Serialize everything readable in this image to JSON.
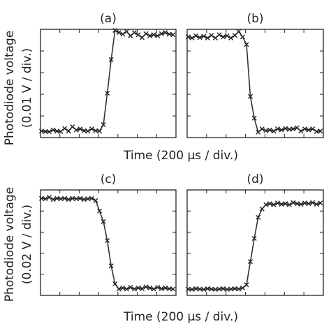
{
  "figure": {
    "top_ylabel_line1": "Photodiode voltage",
    "top_ylabel_line2": "(0.01 V / div.)",
    "bottom_ylabel_line1": "Photodiode voltage",
    "bottom_ylabel_line2": "(0.02 V / div.)",
    "top_xlabel": "Time (200 μs / div.)",
    "bottom_xlabel": "Time (200 μs / div.)"
  },
  "chart_data": [
    {
      "type": "scatter",
      "title": "(a)",
      "xlabel": "Time (200 μs / div.)",
      "ylabel": "Photodiode voltage (0.01 V / div.)",
      "xlim": [
        0,
        7
      ],
      "ylim": [
        0,
        5
      ],
      "series": [
        {
          "x": [
            0.05,
            0.25,
            0.45,
            0.65,
            0.85,
            1.05,
            1.25,
            1.45,
            1.65,
            1.85,
            2.05,
            2.25,
            2.45,
            2.65,
            2.85,
            3.05,
            3.25,
            3.45,
            3.65,
            3.85,
            4.05,
            4.25,
            4.45,
            4.65,
            4.85,
            5.05,
            5.25,
            5.45,
            5.65,
            5.85,
            6.05,
            6.25,
            6.45,
            6.65,
            6.85
          ],
          "y": [
            0.3,
            0.28,
            0.27,
            0.35,
            0.3,
            0.28,
            0.42,
            0.3,
            0.5,
            0.35,
            0.4,
            0.32,
            0.3,
            0.4,
            0.32,
            0.3,
            0.6,
            2.05,
            3.6,
            4.95,
            4.85,
            4.78,
            4.9,
            4.7,
            4.85,
            4.75,
            4.62,
            4.8,
            4.7,
            4.75,
            4.7,
            4.8,
            4.85,
            4.78,
            4.75
          ]
        }
      ]
    },
    {
      "type": "scatter",
      "title": "(b)",
      "xlabel": "Time (200 μs / div.)",
      "ylabel": "Photodiode voltage (0.01 V / div.)",
      "xlim": [
        0,
        7
      ],
      "ylim": [
        0,
        5
      ],
      "series": [
        {
          "x": [
            0.05,
            0.25,
            0.45,
            0.65,
            0.85,
            1.05,
            1.25,
            1.45,
            1.65,
            1.85,
            2.05,
            2.25,
            2.45,
            2.65,
            2.85,
            3.05,
            3.25,
            3.45,
            3.65,
            3.85,
            4.05,
            4.25,
            4.45,
            4.65,
            4.85,
            5.05,
            5.25,
            5.45,
            5.65,
            5.85,
            6.05,
            6.25,
            6.45,
            6.65,
            6.85
          ],
          "y": [
            4.65,
            4.6,
            4.7,
            4.62,
            4.68,
            4.6,
            4.72,
            4.6,
            4.75,
            4.65,
            4.7,
            4.6,
            4.72,
            4.9,
            4.65,
            4.3,
            1.9,
            0.9,
            0.25,
            0.4,
            0.32,
            0.35,
            0.3,
            0.4,
            0.35,
            0.42,
            0.38,
            0.4,
            0.45,
            0.3,
            0.4,
            0.35,
            0.4,
            0.28,
            0.3
          ]
        }
      ]
    },
    {
      "type": "scatter",
      "title": "(c)",
      "xlabel": "Time (200 μs / div.)",
      "ylabel": "Photodiode voltage (0.02 V / div.)",
      "xlim": [
        0,
        7
      ],
      "ylim": [
        0,
        5
      ],
      "series": [
        {
          "x": [
            0.05,
            0.25,
            0.45,
            0.65,
            0.85,
            1.05,
            1.25,
            1.45,
            1.65,
            1.85,
            2.05,
            2.25,
            2.45,
            2.65,
            2.85,
            3.05,
            3.25,
            3.45,
            3.65,
            3.85,
            4.05,
            4.25,
            4.45,
            4.65,
            4.85,
            5.05,
            5.25,
            5.45,
            5.65,
            5.85,
            6.05,
            6.25,
            6.45,
            6.65,
            6.85
          ],
          "y": [
            4.6,
            4.58,
            4.65,
            4.55,
            4.6,
            4.58,
            4.6,
            4.55,
            4.6,
            4.58,
            4.6,
            4.55,
            4.58,
            4.6,
            4.5,
            4.0,
            3.5,
            2.6,
            1.4,
            0.55,
            0.3,
            0.35,
            0.3,
            0.38,
            0.3,
            0.35,
            0.32,
            0.4,
            0.35,
            0.3,
            0.38,
            0.32,
            0.35,
            0.32,
            0.3
          ]
        }
      ]
    },
    {
      "type": "scatter",
      "title": "(d)",
      "xlabel": "Time (200 μs / div.)",
      "ylabel": "Photodiode voltage (0.02 V / div.)",
      "xlim": [
        0,
        7
      ],
      "ylim": [
        0,
        5
      ],
      "series": [
        {
          "x": [
            0.05,
            0.25,
            0.45,
            0.65,
            0.85,
            1.05,
            1.25,
            1.45,
            1.65,
            1.85,
            2.05,
            2.25,
            2.45,
            2.65,
            2.85,
            3.05,
            3.25,
            3.45,
            3.65,
            3.85,
            4.05,
            4.25,
            4.45,
            4.65,
            4.85,
            5.05,
            5.25,
            5.45,
            5.65,
            5.85,
            6.05,
            6.25,
            6.45,
            6.65,
            6.85
          ],
          "y": [
            0.3,
            0.28,
            0.32,
            0.3,
            0.28,
            0.32,
            0.3,
            0.28,
            0.3,
            0.32,
            0.28,
            0.3,
            0.32,
            0.3,
            0.35,
            0.5,
            1.6,
            2.7,
            3.7,
            4.1,
            4.3,
            4.35,
            4.3,
            4.38,
            4.32,
            4.35,
            4.3,
            4.4,
            4.35,
            4.32,
            4.38,
            4.35,
            4.4,
            4.32,
            4.38
          ]
        }
      ]
    }
  ]
}
